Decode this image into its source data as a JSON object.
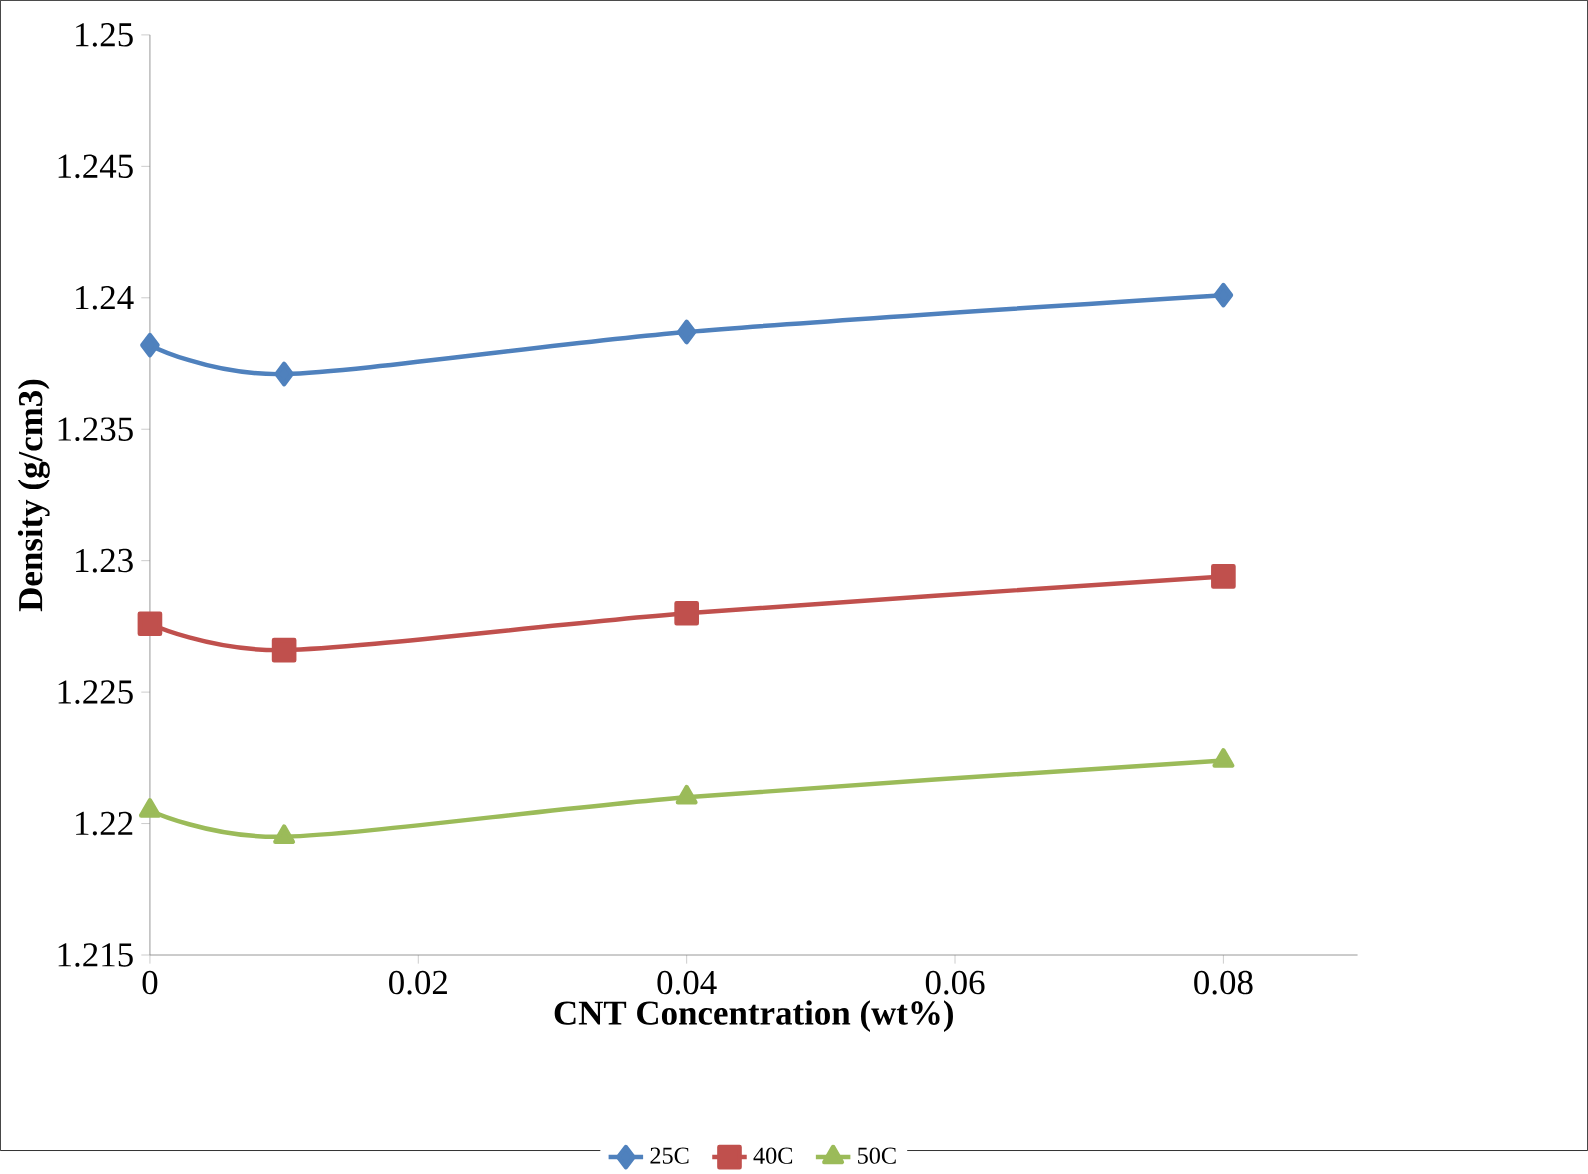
{
  "chart_data": {
    "type": "line",
    "xlabel": "CNT Concentration (wt%)",
    "ylabel": "Density (g/cm3)",
    "x": [
      0,
      0.01,
      0.04,
      0.08
    ],
    "series": [
      {
        "name": "25C",
        "color": "#4f81bd",
        "marker": "diamond",
        "values": [
          1.2382,
          1.2371,
          1.2387,
          1.2401
        ]
      },
      {
        "name": "40C",
        "color": "#c0504d",
        "marker": "square",
        "values": [
          1.2276,
          1.2266,
          1.228,
          1.2294
        ]
      },
      {
        "name": "50C",
        "color": "#9bbb59",
        "marker": "triangle",
        "values": [
          1.2205,
          1.2195,
          1.221,
          1.2224
        ]
      }
    ],
    "xlim": [
      0,
      0.09
    ],
    "xticks": [
      0,
      0.02,
      0.04,
      0.06,
      0.08
    ],
    "ylim": [
      1.215,
      1.25
    ],
    "yticks": [
      1.215,
      1.22,
      1.225,
      1.23,
      1.235,
      1.24,
      1.245,
      1.25
    ],
    "grid": false,
    "legend": "bottom",
    "line_style": "solid"
  }
}
